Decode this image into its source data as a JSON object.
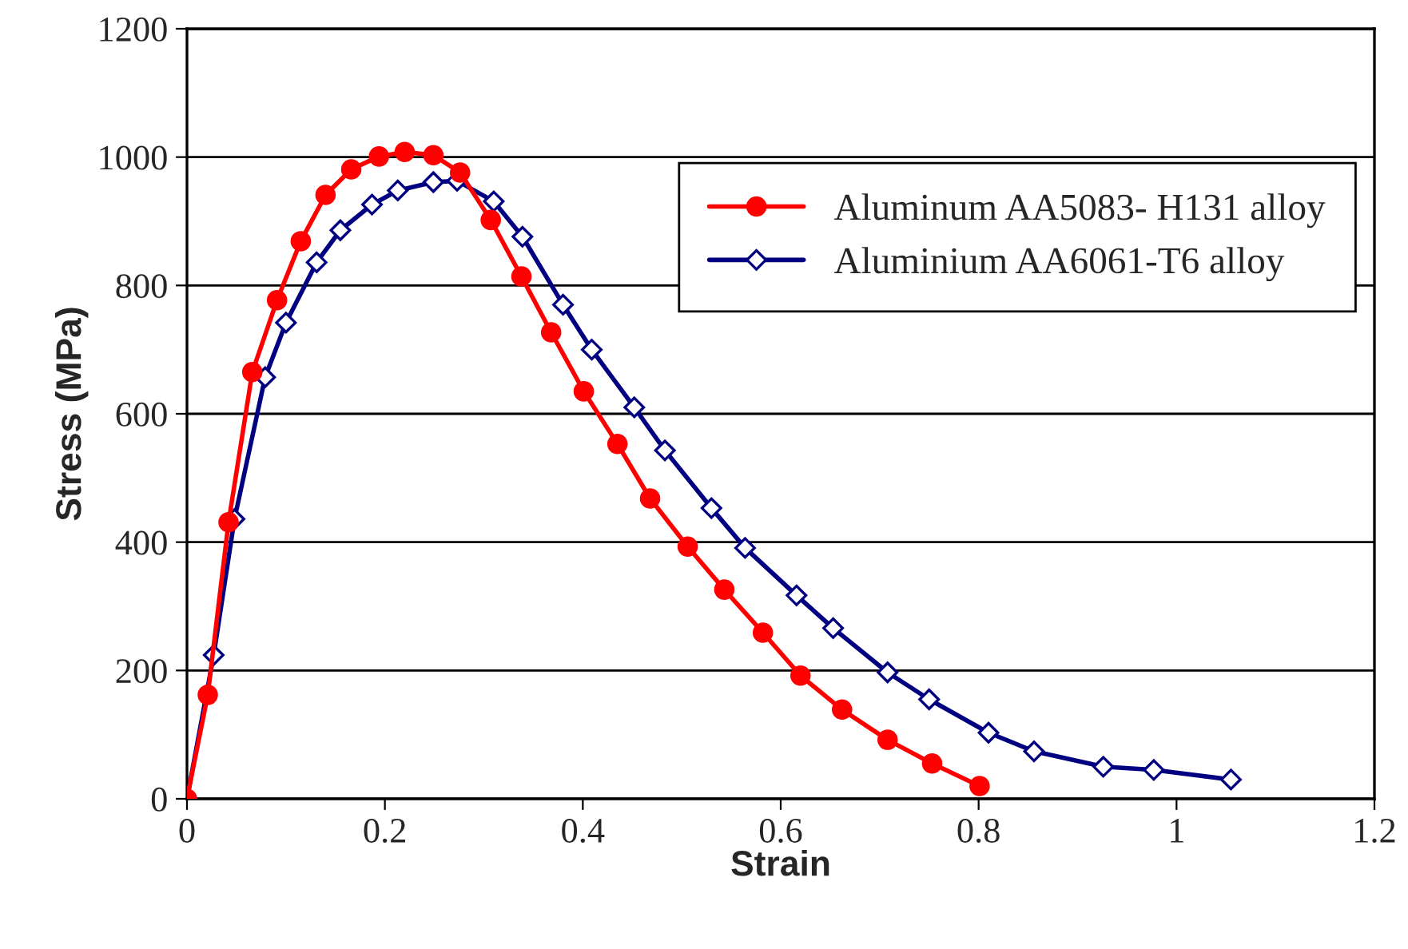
{
  "chart_data": {
    "type": "line",
    "xlabel": "Strain",
    "ylabel": "Stress (MPa)",
    "xlim": [
      0,
      1.2
    ],
    "xticks": [
      0,
      0.2,
      0.4,
      0.6,
      0.8,
      1,
      1.2
    ],
    "ylim": [
      0,
      1200
    ],
    "yticks": [
      0,
      200,
      400,
      600,
      800,
      1000,
      1200
    ],
    "grid": "y",
    "legend": "top right",
    "line_style": "solid",
    "series": [
      {
        "name": "Aluminum AA5083- H131 alloy",
        "color": "#ff0000",
        "marker": "circle",
        "x": [
          0,
          0.021,
          0.042,
          0.066,
          0.091,
          0.115,
          0.14,
          0.166,
          0.194,
          0.22,
          0.249,
          0.276,
          0.307,
          0.338,
          0.368,
          0.401,
          0.435,
          0.468,
          0.506,
          0.543,
          0.582,
          0.62,
          0.662,
          0.708,
          0.753,
          0.801
        ],
        "values": [
          0,
          162,
          431,
          665,
          777,
          869,
          941,
          981,
          1001,
          1008,
          1003,
          976,
          902,
          814,
          727,
          635,
          553,
          468,
          393,
          326,
          259,
          192,
          139,
          92,
          55,
          20
        ]
      },
      {
        "name": "Aluminium AA6061-T6 alloy",
        "color": "#000080",
        "marker": "diamond",
        "x": [
          0,
          0.027,
          0.048,
          0.079,
          0.1,
          0.131,
          0.155,
          0.187,
          0.213,
          0.249,
          0.273,
          0.31,
          0.339,
          0.38,
          0.409,
          0.452,
          0.483,
          0.53,
          0.564,
          0.616,
          0.653,
          0.708,
          0.75,
          0.81,
          0.856,
          0.926,
          0.977,
          1.055
        ],
        "values": [
          0,
          224,
          436,
          657,
          742,
          836,
          886,
          926,
          948,
          961,
          963,
          931,
          876,
          770,
          700,
          610,
          543,
          453,
          391,
          317,
          266,
          197,
          155,
          103,
          74,
          50,
          45,
          30
        ]
      }
    ]
  }
}
